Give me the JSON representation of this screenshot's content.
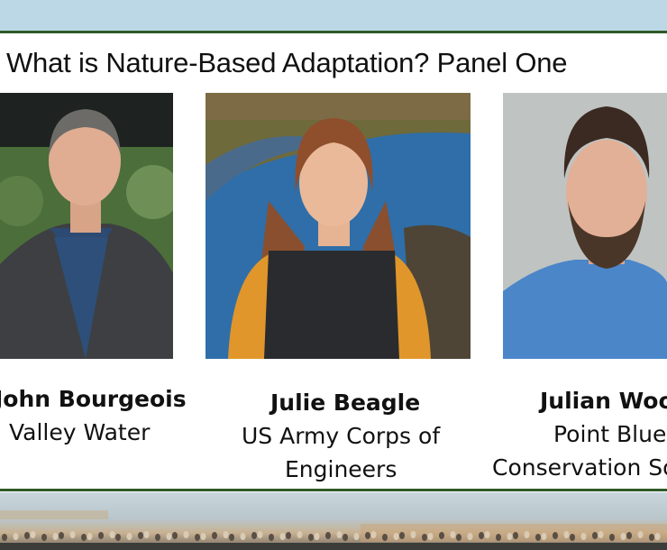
{
  "slide": {
    "title": "What is Nature-Based Adaptation? Panel One",
    "panelists": [
      {
        "name": "John Bourgeois",
        "org_lines": [
          "Valley Water"
        ]
      },
      {
        "name": "Julie Beagle",
        "org_lines": [
          "US Army Corps of",
          "Engineers"
        ]
      },
      {
        "name": "Julian Woo",
        "org_lines": [
          "Point Blue",
          "Conservation So"
        ]
      }
    ]
  },
  "colors": {
    "top_band": "#bcd8e7",
    "rule": "#2f5a27"
  }
}
